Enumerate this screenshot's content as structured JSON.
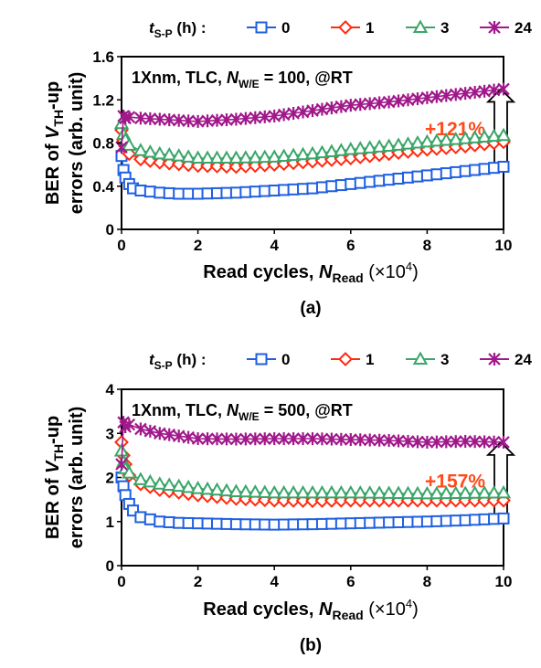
{
  "colors": {
    "s0": "#1f5fe0",
    "s1": "#ff2a10",
    "s3": "#3aa66a",
    "s24": "#a0188a",
    "pct": "#ff4a1a"
  },
  "legend_prefix": "t",
  "legend_sub": "S-P",
  "legend_suffix": " (h) :",
  "chart_data": [
    {
      "type": "line",
      "caption": "(a)",
      "annotation": {
        "pre": "1Xnm, TLC, ",
        "n": "N",
        "sub": "W/E",
        "post": " = 100, @RT"
      },
      "increase_label": "+121%",
      "ylabel": {
        "line1_pre": "BER of ",
        "v": "V",
        "sub": "TH",
        "line1_post": "-up",
        "line2": "errors (arb. unit)"
      },
      "xlabel": {
        "pre": "Read cycles, ",
        "n": "N",
        "sub": "Read",
        "post": " (×10",
        "sup": "4",
        "close": ")"
      },
      "xlim": [
        0,
        10
      ],
      "ylim": [
        0,
        1.6
      ],
      "xticks": [
        "0",
        "2",
        "4",
        "6",
        "8",
        "10"
      ],
      "yticks": [
        "0",
        "0.4",
        "0.8",
        "1.2",
        "1.6"
      ],
      "series": [
        {
          "name": "0",
          "marker": "square",
          "x": [
            0,
            0.05,
            0.1,
            0.2,
            0.3,
            0.5,
            1,
            1.5,
            2,
            3,
            4,
            5,
            6,
            7,
            8,
            9,
            10
          ],
          "y": [
            0.68,
            0.55,
            0.48,
            0.42,
            0.38,
            0.36,
            0.34,
            0.33,
            0.33,
            0.34,
            0.36,
            0.38,
            0.42,
            0.46,
            0.5,
            0.54,
            0.58
          ]
        },
        {
          "name": "1",
          "marker": "diamond",
          "x": [
            0,
            0.05,
            0.1,
            0.2,
            0.5,
            1,
            2,
            3,
            4,
            5,
            6,
            7,
            8,
            9,
            10
          ],
          "y": [
            0.92,
            0.82,
            0.77,
            0.7,
            0.65,
            0.62,
            0.59,
            0.58,
            0.6,
            0.63,
            0.66,
            0.7,
            0.74,
            0.77,
            0.81
          ]
        },
        {
          "name": "3",
          "marker": "triangle",
          "x": [
            0,
            0.05,
            0.1,
            0.2,
            0.5,
            1,
            2,
            3,
            4,
            5,
            6,
            7,
            8,
            9,
            10
          ],
          "y": [
            0.98,
            0.88,
            0.83,
            0.78,
            0.73,
            0.7,
            0.66,
            0.66,
            0.67,
            0.7,
            0.74,
            0.77,
            0.81,
            0.84,
            0.87
          ]
        },
        {
          "name": "24",
          "marker": "star",
          "x": [
            0,
            0.05,
            0.1,
            0.2,
            0.5,
            1,
            2,
            3,
            4,
            5,
            6,
            7,
            8,
            9,
            10
          ],
          "y": [
            0.76,
            1.05,
            1.03,
            1.04,
            1.03,
            1.02,
            1.0,
            1.02,
            1.05,
            1.1,
            1.15,
            1.18,
            1.22,
            1.26,
            1.3
          ]
        }
      ]
    },
    {
      "type": "line",
      "caption": "(b)",
      "annotation": {
        "pre": "1Xnm, TLC, ",
        "n": "N",
        "sub": "W/E",
        "post": " = 500, @RT"
      },
      "increase_label": "+157%",
      "ylabel": {
        "line1_pre": "BER of ",
        "v": "V",
        "sub": "TH",
        "line1_post": "-up",
        "line2": "errors (arb. unit)"
      },
      "xlabel": {
        "pre": "Read cycles, ",
        "n": "N",
        "sub": "Read",
        "post": " (×10",
        "sup": "4",
        "close": ")"
      },
      "xlim": [
        0,
        10
      ],
      "ylim": [
        0,
        4
      ],
      "xticks": [
        "0",
        "2",
        "4",
        "6",
        "8",
        "10"
      ],
      "yticks": [
        "0",
        "1",
        "2",
        "3",
        "4"
      ],
      "series": [
        {
          "name": "0",
          "marker": "square",
          "x": [
            0,
            0.05,
            0.1,
            0.2,
            0.3,
            0.5,
            1,
            1.5,
            2,
            3,
            4,
            5,
            6,
            7,
            8,
            9,
            10
          ],
          "y": [
            2.0,
            1.8,
            1.6,
            1.4,
            1.25,
            1.1,
            1.0,
            0.97,
            0.96,
            0.94,
            0.93,
            0.94,
            0.96,
            0.98,
            1.0,
            1.03,
            1.07
          ]
        },
        {
          "name": "1",
          "marker": "diamond",
          "x": [
            0,
            0.05,
            0.1,
            0.2,
            0.5,
            1,
            2,
            3,
            4,
            5,
            6,
            7,
            8,
            9,
            10
          ],
          "y": [
            2.8,
            2.5,
            2.3,
            2.05,
            1.85,
            1.72,
            1.6,
            1.52,
            1.48,
            1.47,
            1.48,
            1.48,
            1.48,
            1.48,
            1.48
          ]
        },
        {
          "name": "3",
          "marker": "triangle",
          "x": [
            0,
            0.05,
            0.1,
            0.2,
            0.5,
            1,
            2,
            3,
            4,
            5,
            6,
            7,
            8,
            9,
            10
          ],
          "y": [
            2.6,
            2.35,
            2.2,
            2.1,
            1.95,
            1.85,
            1.75,
            1.68,
            1.65,
            1.65,
            1.65,
            1.64,
            1.63,
            1.64,
            1.65
          ]
        },
        {
          "name": "24",
          "marker": "star",
          "x": [
            0,
            0.05,
            0.1,
            0.2,
            0.5,
            1,
            2,
            3,
            4,
            5,
            6,
            7,
            8,
            9,
            10
          ],
          "y": [
            2.3,
            3.25,
            3.15,
            3.2,
            3.1,
            3.0,
            2.88,
            2.87,
            2.88,
            2.88,
            2.86,
            2.84,
            2.8,
            2.82,
            2.8
          ]
        }
      ]
    }
  ]
}
